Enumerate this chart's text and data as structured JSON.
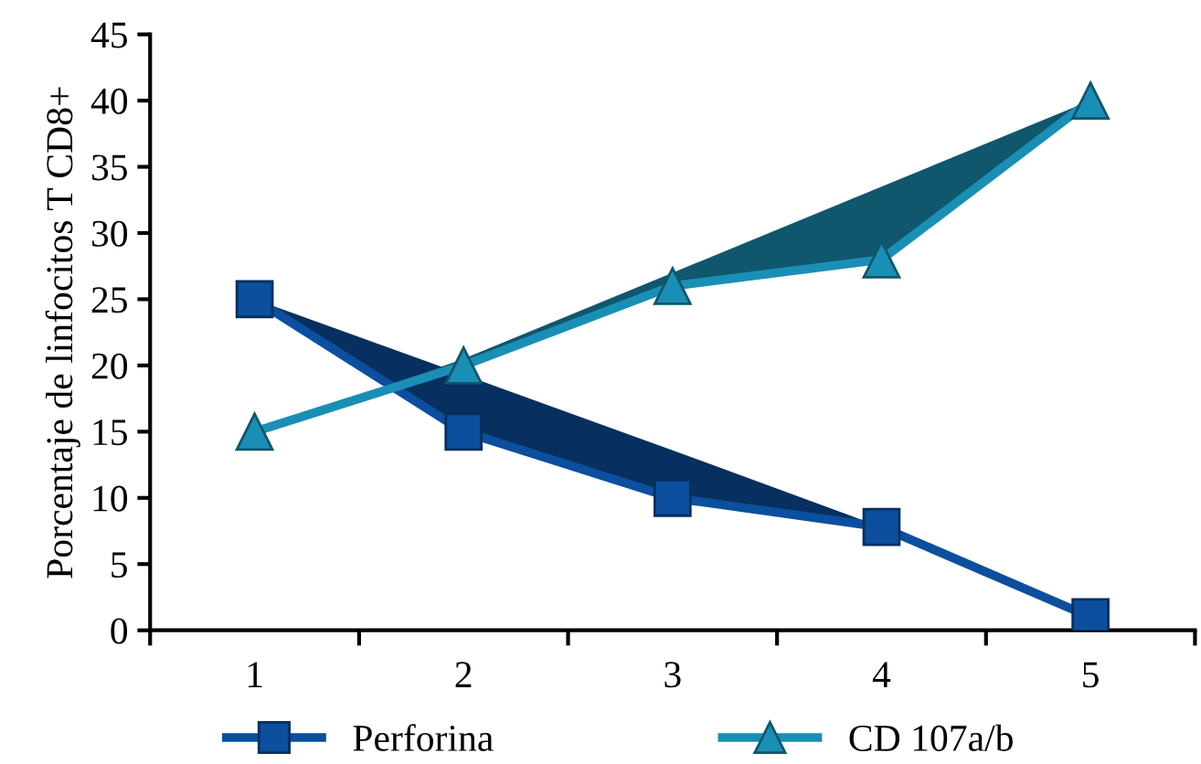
{
  "chart_data": {
    "type": "line",
    "ylabel": "Porcentaje de linfocitos T CD8+",
    "categories": [
      "1",
      "2",
      "3",
      "4",
      "5"
    ],
    "series": [
      {
        "name": "Perforina",
        "color": "#0b4f9e",
        "marker": "square",
        "values": [
          25,
          15,
          10,
          7.8,
          1
        ],
        "lower": [
          25,
          15,
          10,
          7.8,
          1
        ],
        "upper": [
          25,
          19.3,
          13.6,
          7.8,
          1
        ]
      },
      {
        "name": "CD 107a/b",
        "color": "#1a8fb5",
        "marker": "triangle",
        "values": [
          15,
          20,
          26,
          28,
          40
        ],
        "lower": [
          15,
          20,
          26,
          28,
          40
        ],
        "upper": [
          15,
          20.5,
          27,
          33.5,
          40
        ]
      }
    ],
    "ylim": [
      0,
      45
    ],
    "yticks": [
      0,
      5,
      10,
      15,
      20,
      25,
      30,
      35,
      40,
      45
    ],
    "grid": false,
    "legend": "bottom",
    "line_style": "solid"
  }
}
